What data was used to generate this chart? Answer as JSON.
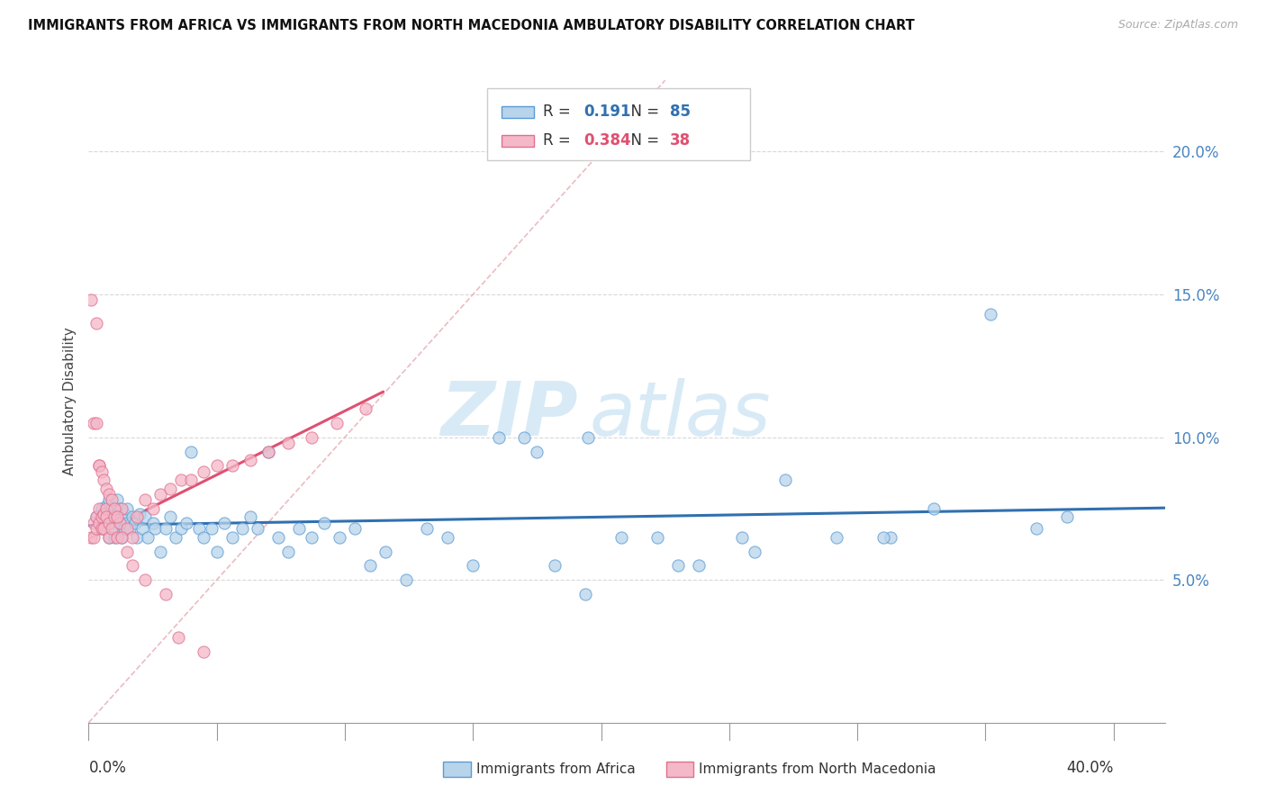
{
  "title": "IMMIGRANTS FROM AFRICA VS IMMIGRANTS FROM NORTH MACEDONIA AMBULATORY DISABILITY CORRELATION CHART",
  "source": "Source: ZipAtlas.com",
  "ylabel": "Ambulatory Disability",
  "yticks": [
    0.05,
    0.1,
    0.15,
    0.2
  ],
  "ytick_labels": [
    "5.0%",
    "10.0%",
    "15.0%",
    "20.0%"
  ],
  "xlim": [
    0.0,
    0.42
  ],
  "ylim": [
    0.0,
    0.225
  ],
  "africa_R": 0.191,
  "africa_N": 85,
  "macedonia_R": 0.384,
  "macedonia_N": 38,
  "africa_color": "#b8d4ea",
  "africa_edge_color": "#5b9bd5",
  "africa_line_color": "#3070b0",
  "macedonia_color": "#f4b8c8",
  "macedonia_edge_color": "#e07090",
  "macedonia_line_color": "#e05070",
  "ref_line_color": "#e8b0b8",
  "watermark_color": "#d8eaf6",
  "background_color": "#ffffff",
  "africa_x": [
    0.003,
    0.004,
    0.005,
    0.005,
    0.006,
    0.007,
    0.007,
    0.008,
    0.008,
    0.008,
    0.009,
    0.009,
    0.01,
    0.01,
    0.01,
    0.011,
    0.011,
    0.012,
    0.012,
    0.013,
    0.013,
    0.014,
    0.014,
    0.015,
    0.015,
    0.016,
    0.017,
    0.018,
    0.019,
    0.02,
    0.021,
    0.022,
    0.023,
    0.025,
    0.026,
    0.028,
    0.03,
    0.032,
    0.034,
    0.036,
    0.038,
    0.04,
    0.043,
    0.045,
    0.048,
    0.05,
    0.053,
    0.056,
    0.06,
    0.063,
    0.066,
    0.07,
    0.074,
    0.078,
    0.082,
    0.087,
    0.092,
    0.098,
    0.104,
    0.11,
    0.116,
    0.124,
    0.132,
    0.14,
    0.15,
    0.16,
    0.17,
    0.182,
    0.194,
    0.208,
    0.222,
    0.238,
    0.255,
    0.272,
    0.292,
    0.313,
    0.33,
    0.352,
    0.37,
    0.382,
    0.31,
    0.26,
    0.23,
    0.195,
    0.175
  ],
  "africa_y": [
    0.072,
    0.07,
    0.068,
    0.075,
    0.073,
    0.07,
    0.076,
    0.065,
    0.072,
    0.078,
    0.07,
    0.075,
    0.065,
    0.072,
    0.068,
    0.073,
    0.078,
    0.07,
    0.075,
    0.065,
    0.072,
    0.068,
    0.073,
    0.07,
    0.075,
    0.068,
    0.072,
    0.07,
    0.065,
    0.073,
    0.068,
    0.072,
    0.065,
    0.07,
    0.068,
    0.06,
    0.068,
    0.072,
    0.065,
    0.068,
    0.07,
    0.095,
    0.068,
    0.065,
    0.068,
    0.06,
    0.07,
    0.065,
    0.068,
    0.072,
    0.068,
    0.095,
    0.065,
    0.06,
    0.068,
    0.065,
    0.07,
    0.065,
    0.068,
    0.055,
    0.06,
    0.05,
    0.068,
    0.065,
    0.055,
    0.1,
    0.1,
    0.055,
    0.045,
    0.065,
    0.065,
    0.055,
    0.065,
    0.085,
    0.065,
    0.065,
    0.075,
    0.143,
    0.068,
    0.072,
    0.065,
    0.06,
    0.055,
    0.1,
    0.095
  ],
  "macedonia_x": [
    0.001,
    0.002,
    0.002,
    0.003,
    0.003,
    0.004,
    0.004,
    0.005,
    0.005,
    0.006,
    0.006,
    0.007,
    0.007,
    0.008,
    0.008,
    0.009,
    0.01,
    0.011,
    0.012,
    0.013,
    0.015,
    0.017,
    0.019,
    0.022,
    0.025,
    0.028,
    0.032,
    0.036,
    0.04,
    0.045,
    0.05,
    0.056,
    0.063,
    0.07,
    0.078,
    0.087,
    0.097,
    0.108
  ],
  "macedonia_y": [
    0.065,
    0.07,
    0.065,
    0.072,
    0.068,
    0.07,
    0.075,
    0.072,
    0.068,
    0.073,
    0.068,
    0.075,
    0.072,
    0.07,
    0.065,
    0.068,
    0.072,
    0.065,
    0.07,
    0.075,
    0.068,
    0.065,
    0.072,
    0.078,
    0.075,
    0.08,
    0.082,
    0.085,
    0.085,
    0.088,
    0.09,
    0.09,
    0.092,
    0.095,
    0.098,
    0.1,
    0.105,
    0.11
  ],
  "macedonia_outliers_x": [
    0.001,
    0.002,
    0.003,
    0.003,
    0.004,
    0.004,
    0.005,
    0.006,
    0.007,
    0.008,
    0.009,
    0.01,
    0.011,
    0.013,
    0.015,
    0.017,
    0.022,
    0.03,
    0.035,
    0.045
  ],
  "macedonia_outliers_y": [
    0.148,
    0.105,
    0.105,
    0.14,
    0.09,
    0.09,
    0.088,
    0.085,
    0.082,
    0.08,
    0.078,
    0.075,
    0.072,
    0.065,
    0.06,
    0.055,
    0.05,
    0.045,
    0.03,
    0.025
  ]
}
